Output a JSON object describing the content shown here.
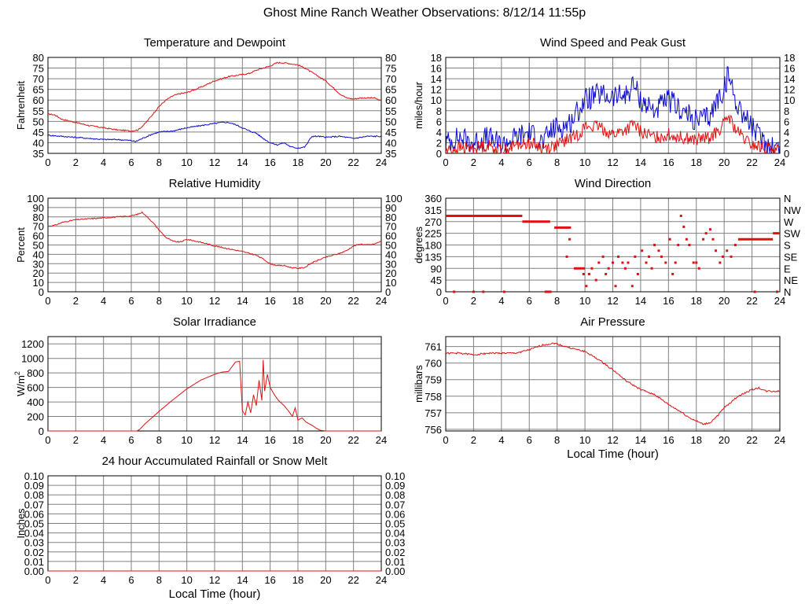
{
  "page": {
    "title": "Ghost Mine Ranch Weather Observations: 8/12/14 11:55p"
  },
  "colors": {
    "red": "#e01010",
    "blue": "#0a0ad0",
    "grid": "#808080",
    "frame": "#000000",
    "background": "#ffffff"
  },
  "chart_data": [
    {
      "id": "temperature",
      "type": "line",
      "title": "Temperature and Dewpoint",
      "ylabel": "Fahrenheit",
      "xlabel": "",
      "xlim": [
        0,
        24
      ],
      "ylim": [
        35,
        80
      ],
      "grid": true,
      "x_ticks": [
        "0",
        "2",
        "4",
        "6",
        "8",
        "10",
        "12",
        "14",
        "16",
        "18",
        "20",
        "22",
        "24"
      ],
      "y_ticks_left": [
        "80",
        "75",
        "70",
        "65",
        "60",
        "55",
        "50",
        "45",
        "40",
        "35"
      ],
      "y_ticks_right": [
        "80",
        "75",
        "70",
        "65",
        "60",
        "55",
        "50",
        "45",
        "40",
        "35"
      ],
      "series": [
        {
          "color": "#e01010",
          "noise": 0.3,
          "x": [
            0,
            0.5,
            1,
            2,
            3,
            4,
            5,
            6,
            6.5,
            7,
            7.5,
            8,
            8.5,
            9,
            9.5,
            10,
            11,
            12,
            12.5,
            13,
            14,
            14.5,
            15,
            16,
            16.5,
            17,
            18,
            18.5,
            19,
            20,
            20.5,
            21,
            21.5,
            22,
            22.5,
            23,
            23.5,
            24
          ],
          "y": [
            53.5,
            53,
            51,
            49.5,
            48,
            47,
            46,
            45.5,
            46,
            49,
            53,
            57,
            60,
            62,
            63,
            63.5,
            66,
            69,
            70,
            71,
            72,
            72.5,
            74,
            76,
            77.5,
            77.5,
            76.5,
            75,
            73,
            69,
            66,
            63,
            61,
            60.5,
            61,
            61,
            61,
            59.5
          ]
        },
        {
          "color": "#0a0ad0",
          "noise": 0.3,
          "x": [
            0,
            1,
            2,
            3,
            4,
            5,
            6,
            6.3,
            6.8,
            7.5,
            8,
            9,
            10,
            11,
            12,
            12.5,
            13,
            13.5,
            14,
            14.5,
            15,
            15.5,
            16,
            16.5,
            17,
            17.5,
            18,
            18.5,
            19,
            19.5,
            20,
            21,
            22,
            23,
            24
          ],
          "y": [
            43.5,
            43,
            42.5,
            42,
            41.5,
            41.5,
            41,
            40.5,
            42,
            44,
            45,
            45.5,
            47,
            48,
            49,
            49.5,
            49.5,
            48.5,
            47,
            45.5,
            44.5,
            42,
            40,
            39,
            40,
            38,
            37.5,
            38,
            43,
            43,
            42.5,
            43,
            42,
            43,
            43
          ]
        }
      ]
    },
    {
      "id": "wind-speed",
      "type": "line",
      "title": "Wind Speed and Peak Gust",
      "ylabel": "miles/hour",
      "xlabel": "",
      "xlim": [
        0,
        24
      ],
      "ylim": [
        0,
        18
      ],
      "grid": true,
      "x_ticks": [
        "0",
        "2",
        "4",
        "6",
        "8",
        "10",
        "12",
        "14",
        "16",
        "18",
        "20",
        "22",
        "24"
      ],
      "y_ticks_left": [
        "18",
        "16",
        "14",
        "12",
        "10",
        "8",
        "6",
        "4",
        "2",
        "0"
      ],
      "y_ticks_right": [
        "18",
        "16",
        "14",
        "12",
        "10",
        "8",
        "6",
        "4",
        "2",
        "0"
      ],
      "series": [
        {
          "color": "#0a0ad0",
          "noise": 2.2,
          "x": [
            0,
            1,
            2,
            3,
            4,
            5,
            6,
            7,
            7.5,
            8,
            8.5,
            9,
            9.5,
            10,
            11,
            12,
            13,
            13.5,
            14,
            15,
            16,
            16.5,
            17,
            18,
            19,
            19.5,
            20,
            20.3,
            20.8,
            21.5,
            22,
            22.5,
            23,
            24
          ],
          "y": [
            2,
            3,
            2,
            3,
            1.5,
            3,
            4,
            2,
            4,
            5,
            5,
            6,
            8,
            10,
            11,
            10.5,
            11,
            13,
            10,
            8,
            10,
            9,
            8,
            6,
            7,
            10,
            12,
            15,
            10,
            7,
            5,
            3,
            2,
            1
          ]
        },
        {
          "color": "#e01010",
          "noise": 1.2,
          "x": [
            0,
            1,
            2,
            3,
            4,
            5,
            6,
            7,
            8,
            9,
            9.5,
            10,
            11,
            12,
            13,
            13.5,
            14,
            15,
            16,
            17,
            18,
            19,
            19.5,
            20,
            20.3,
            20.8,
            21.5,
            22,
            23,
            24
          ],
          "y": [
            0.5,
            1,
            1,
            1.5,
            0.5,
            1.5,
            2,
            1,
            1.5,
            3,
            3.5,
            5,
            5,
            3.5,
            4.5,
            5.5,
            4,
            3,
            3.5,
            3,
            2.5,
            3,
            4,
            5.5,
            7,
            4.5,
            2.5,
            1.5,
            1,
            0.5
          ]
        }
      ]
    },
    {
      "id": "humidity",
      "type": "line",
      "title": "Relative Humidity",
      "ylabel": "Percent",
      "xlabel": "",
      "xlim": [
        0,
        24
      ],
      "ylim": [
        0,
        100
      ],
      "grid": true,
      "x_ticks": [
        "0",
        "2",
        "4",
        "6",
        "8",
        "10",
        "12",
        "14",
        "16",
        "18",
        "20",
        "22",
        "24"
      ],
      "y_ticks_left": [
        "100",
        "90",
        "80",
        "70",
        "60",
        "50",
        "40",
        "30",
        "20",
        "10",
        "0"
      ],
      "y_ticks_right": [
        "100",
        "90",
        "80",
        "70",
        "60",
        "50",
        "40",
        "30",
        "20",
        "10",
        "0"
      ],
      "series": [
        {
          "color": "#e01010",
          "noise": 0.6,
          "x": [
            0,
            0.5,
            1,
            2,
            3,
            4,
            5,
            6,
            6.5,
            6.8,
            7,
            7.5,
            8,
            8.5,
            9,
            9.5,
            10,
            11,
            12,
            13,
            14,
            15,
            15.5,
            16,
            16.5,
            17,
            17.5,
            18,
            18.5,
            19,
            20,
            21,
            21.5,
            22,
            22.5,
            23,
            23.5,
            24
          ],
          "y": [
            70,
            71,
            74,
            77,
            78,
            79,
            80,
            81,
            83,
            85,
            82,
            75,
            66,
            58,
            54,
            53,
            56,
            53,
            49,
            46,
            43,
            39,
            35,
            30,
            28,
            28,
            26,
            25,
            26,
            31,
            37,
            41,
            44,
            49,
            51,
            50,
            51,
            54
          ]
        }
      ]
    },
    {
      "id": "wind-direction",
      "type": "scatter",
      "title": "Wind Direction",
      "ylabel": "degrees",
      "xlabel": "",
      "xlim": [
        0,
        24
      ],
      "ylim": [
        0,
        360
      ],
      "grid": true,
      "x_ticks": [
        "0",
        "2",
        "4",
        "6",
        "8",
        "10",
        "12",
        "14",
        "16",
        "18",
        "20",
        "22",
        "24"
      ],
      "y_ticks_left": [
        "360",
        "315",
        "270",
        "225",
        "180",
        "135",
        "90",
        "45",
        "0"
      ],
      "y_ticks_right": [
        "N",
        "NW",
        "W",
        "SW",
        "S",
        "SE",
        "E",
        "NE",
        "N"
      ],
      "segments": [
        {
          "x0": 0,
          "x1": 5.5,
          "y": 292
        },
        {
          "x0": 5.5,
          "x1": 7.5,
          "y": 270
        },
        {
          "x0": 7.8,
          "x1": 9.0,
          "y": 247
        },
        {
          "x0": 9.2,
          "x1": 10.0,
          "y": 90
        },
        {
          "x0": 21.0,
          "x1": 23.5,
          "y": 202
        },
        {
          "x0": 23.5,
          "x1": 24,
          "y": 225
        },
        {
          "x0": 7.1,
          "x1": 7.6,
          "y": 0
        }
      ],
      "points": {
        "x": [
          0.6,
          2.0,
          2.7,
          4.2,
          8.7,
          8.9,
          9.9,
          10.1,
          10.3,
          10.5,
          10.8,
          11.0,
          11.3,
          11.5,
          11.7,
          12.0,
          12.2,
          12.4,
          12.7,
          12.9,
          13.1,
          13.4,
          13.6,
          13.8,
          14.1,
          14.4,
          14.6,
          14.8,
          15.0,
          15.3,
          15.5,
          15.8,
          16.1,
          16.3,
          16.5,
          16.7,
          16.9,
          17.1,
          17.3,
          17.5,
          17.8,
          18.0,
          18.2,
          18.5,
          18.7,
          19.0,
          19.2,
          19.4,
          19.7,
          19.9,
          20.2,
          20.5,
          20.8,
          22.2,
          23.8
        ],
        "y": [
          0,
          0,
          0,
          0,
          135,
          202,
          68,
          22,
          68,
          90,
          45,
          112,
          135,
          68,
          90,
          112,
          22,
          135,
          112,
          90,
          112,
          22,
          135,
          68,
          158,
          112,
          135,
          90,
          180,
          158,
          135,
          112,
          202,
          68,
          112,
          180,
          292,
          250,
          202,
          180,
          112,
          112,
          90,
          202,
          225,
          240,
          202,
          158,
          112,
          135,
          158,
          135,
          180,
          0,
          0
        ]
      }
    },
    {
      "id": "solar",
      "type": "line",
      "title": "Solar Irradiance",
      "ylabel": "W/m",
      "ylabel_sup": "2",
      "xlabel": "",
      "xlim": [
        0,
        24
      ],
      "ylim": [
        0,
        1300
      ],
      "grid": true,
      "x_ticks": [
        "0",
        "2",
        "4",
        "6",
        "8",
        "10",
        "12",
        "14",
        "16",
        "18",
        "20",
        "22",
        "24"
      ],
      "y_ticks_left": [
        "1200",
        "1000",
        "800",
        "600",
        "400",
        "200",
        "0"
      ],
      "y_ticks_right": [],
      "series": [
        {
          "color": "#e01010",
          "noise": 0,
          "x": [
            0,
            6.4,
            6.6,
            7,
            8,
            9,
            10,
            11,
            12,
            12.5,
            13,
            13.5,
            13.8,
            14.0,
            14.2,
            14.4,
            14.6,
            14.8,
            15.0,
            15.2,
            15.4,
            15.5,
            15.6,
            15.8,
            16.0,
            16.3,
            16.6,
            17.0,
            17.3,
            17.6,
            17.8,
            18.0,
            18.3,
            18.6,
            19.0,
            19.3,
            19.6,
            20,
            24
          ],
          "y": [
            0,
            0,
            20,
            100,
            270,
            430,
            580,
            700,
            780,
            810,
            820,
            950,
            960,
            280,
            220,
            400,
            250,
            500,
            350,
            700,
            420,
            980,
            550,
            780,
            600,
            500,
            420,
            350,
            280,
            200,
            320,
            150,
            180,
            120,
            80,
            40,
            10,
            0,
            0
          ]
        }
      ]
    },
    {
      "id": "pressure",
      "type": "line",
      "title": "Air Pressure",
      "ylabel": "millibars",
      "xlabel": "Local Time (hour)",
      "xlim": [
        0,
        24
      ],
      "ylim": [
        755.9,
        761.6
      ],
      "grid": true,
      "x_ticks": [
        "0",
        "2",
        "4",
        "6",
        "8",
        "10",
        "12",
        "14",
        "16",
        "18",
        "20",
        "22",
        "24"
      ],
      "y_ticks_left": [
        "761",
        "760",
        "759",
        "758",
        "757",
        "756"
      ],
      "y_ticks_right": [],
      "series": [
        {
          "color": "#e01010",
          "noise": 0.05,
          "x": [
            0,
            1,
            2,
            3,
            4,
            5,
            6,
            7,
            7.8,
            8.2,
            9,
            10,
            11,
            12,
            13,
            14,
            15,
            16,
            17,
            17.5,
            18,
            18.5,
            19,
            19.5,
            20,
            21,
            22,
            22.5,
            23,
            24
          ],
          "y": [
            760.6,
            760.6,
            760.5,
            760.6,
            760.6,
            760.6,
            760.8,
            761.1,
            761.2,
            761.1,
            760.9,
            760.7,
            760.2,
            759.6,
            758.9,
            758.4,
            758.1,
            757.5,
            757.0,
            756.7,
            756.5,
            756.3,
            756.4,
            756.8,
            757.3,
            758.0,
            758.4,
            758.5,
            758.3,
            758.3
          ]
        }
      ]
    },
    {
      "id": "rainfall",
      "type": "line",
      "title": "24 hour Accumulated Rainfall or Snow Melt",
      "ylabel": "Inches",
      "xlabel": "Local Time (hour)",
      "xlim": [
        0,
        24
      ],
      "ylim": [
        0,
        0.1
      ],
      "grid": true,
      "x_ticks": [
        "0",
        "2",
        "4",
        "6",
        "8",
        "10",
        "12",
        "14",
        "16",
        "18",
        "20",
        "22",
        "24"
      ],
      "y_ticks_left": [
        "0.10",
        "0.09",
        "0.08",
        "0.07",
        "0.06",
        "0.05",
        "0.04",
        "0.03",
        "0.02",
        "0.01",
        "0.00"
      ],
      "y_ticks_right": [
        "0.10",
        "0.09",
        "0.08",
        "0.07",
        "0.06",
        "0.05",
        "0.04",
        "0.03",
        "0.02",
        "0.01",
        "0.00"
      ],
      "series": [
        {
          "color": "#e01010",
          "noise": 0,
          "x": [
            0,
            24
          ],
          "y": [
            0,
            0
          ]
        }
      ]
    }
  ]
}
